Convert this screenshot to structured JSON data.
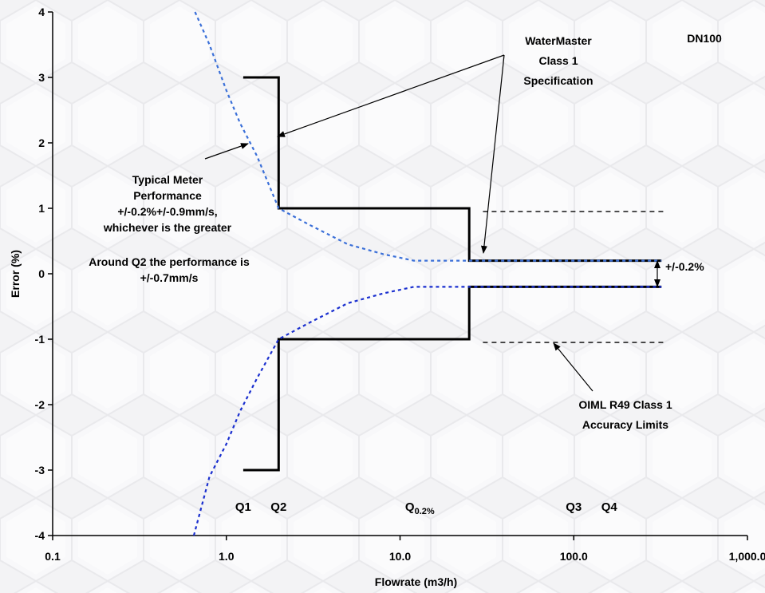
{
  "chart_data": {
    "type": "line",
    "title": "",
    "corner_label": "DN100",
    "xlabel": "Flowrate (m3/h)",
    "ylabel": "Error (%)",
    "x_scale": "log",
    "xlim": [
      0.1,
      1000
    ],
    "ylim": [
      -4,
      4
    ],
    "x_ticks": [
      {
        "value": 0.1,
        "label": "0.1"
      },
      {
        "value": 1,
        "label": "1.0"
      },
      {
        "value": 10,
        "label": "10.0"
      },
      {
        "value": 100,
        "label": "100.0"
      },
      {
        "value": 1000,
        "label": "1,000.0"
      }
    ],
    "y_ticks": [
      {
        "value": 4,
        "label": "4"
      },
      {
        "value": 3,
        "label": "3"
      },
      {
        "value": 2,
        "label": "2"
      },
      {
        "value": 1,
        "label": "1"
      },
      {
        "value": 0,
        "label": "0"
      },
      {
        "value": -1,
        "label": "-1"
      },
      {
        "value": -2,
        "label": "-2"
      },
      {
        "value": -3,
        "label": "-3"
      },
      {
        "value": -4,
        "label": "-4"
      }
    ],
    "grid": false,
    "legend": "none",
    "series": [
      {
        "color": "#000000",
        "style": "solid",
        "x": [
          1.25,
          2,
          2,
          25,
          25,
          320
        ],
        "y": [
          3,
          3,
          1,
          1,
          0.2,
          0.2
        ]
      },
      {
        "color": "#000000",
        "style": "solid",
        "x": [
          1.25,
          2,
          2,
          25,
          25,
          320
        ],
        "y": [
          -3,
          -3,
          -1,
          -1,
          -0.2,
          -0.2
        ]
      },
      {
        "color": "#3a6fd8",
        "style": "dotted",
        "x": [
          0.66,
          0.8,
          1,
          1.2,
          1.5,
          2,
          3,
          5,
          8,
          12,
          25,
          320
        ],
        "y": [
          4,
          3.5,
          2.8,
          2.3,
          1.8,
          1,
          0.75,
          0.45,
          0.3,
          0.2,
          0.2,
          0.2
        ]
      },
      {
        "color": "#1a2fcf",
        "style": "dotted",
        "x": [
          0.65,
          0.8,
          1,
          1.2,
          1.5,
          2,
          3,
          5,
          8,
          12,
          25,
          320
        ],
        "y": [
          -4,
          -3.1,
          -2.6,
          -2.1,
          -1.6,
          -1,
          -0.75,
          -0.45,
          -0.3,
          -0.2,
          -0.2,
          -0.2
        ]
      },
      {
        "color": "#000000",
        "style": "dashed",
        "x": [
          30,
          330
        ],
        "y": [
          0.95,
          0.95
        ]
      },
      {
        "color": "#000000",
        "style": "dashed",
        "x": [
          30,
          330
        ],
        "y": [
          -1.05,
          -1.05
        ]
      }
    ],
    "annotations": {
      "watermaster": [
        "WaterMaster",
        "Class 1",
        "Specification"
      ],
      "typical": [
        "Typical Meter",
        "Performance",
        "+/-0.2%+/-0.9mm/s,",
        "whichever is the greater"
      ],
      "around_q2": [
        "Around Q2 the performance is",
        "+/-0.7mm/s"
      ],
      "oiml": [
        "OIML R49 Class 1",
        "Accuracy Limits"
      ],
      "band": "+/-0.2%"
    },
    "flow_labels": [
      {
        "text": "Q1",
        "x": 1.25
      },
      {
        "text": "Q2",
        "x": 2
      },
      {
        "text": "Q",
        "sub": "0.2%",
        "x": 13
      },
      {
        "text": "Q3",
        "x": 100
      },
      {
        "text": "Q4",
        "x": 160
      }
    ]
  }
}
